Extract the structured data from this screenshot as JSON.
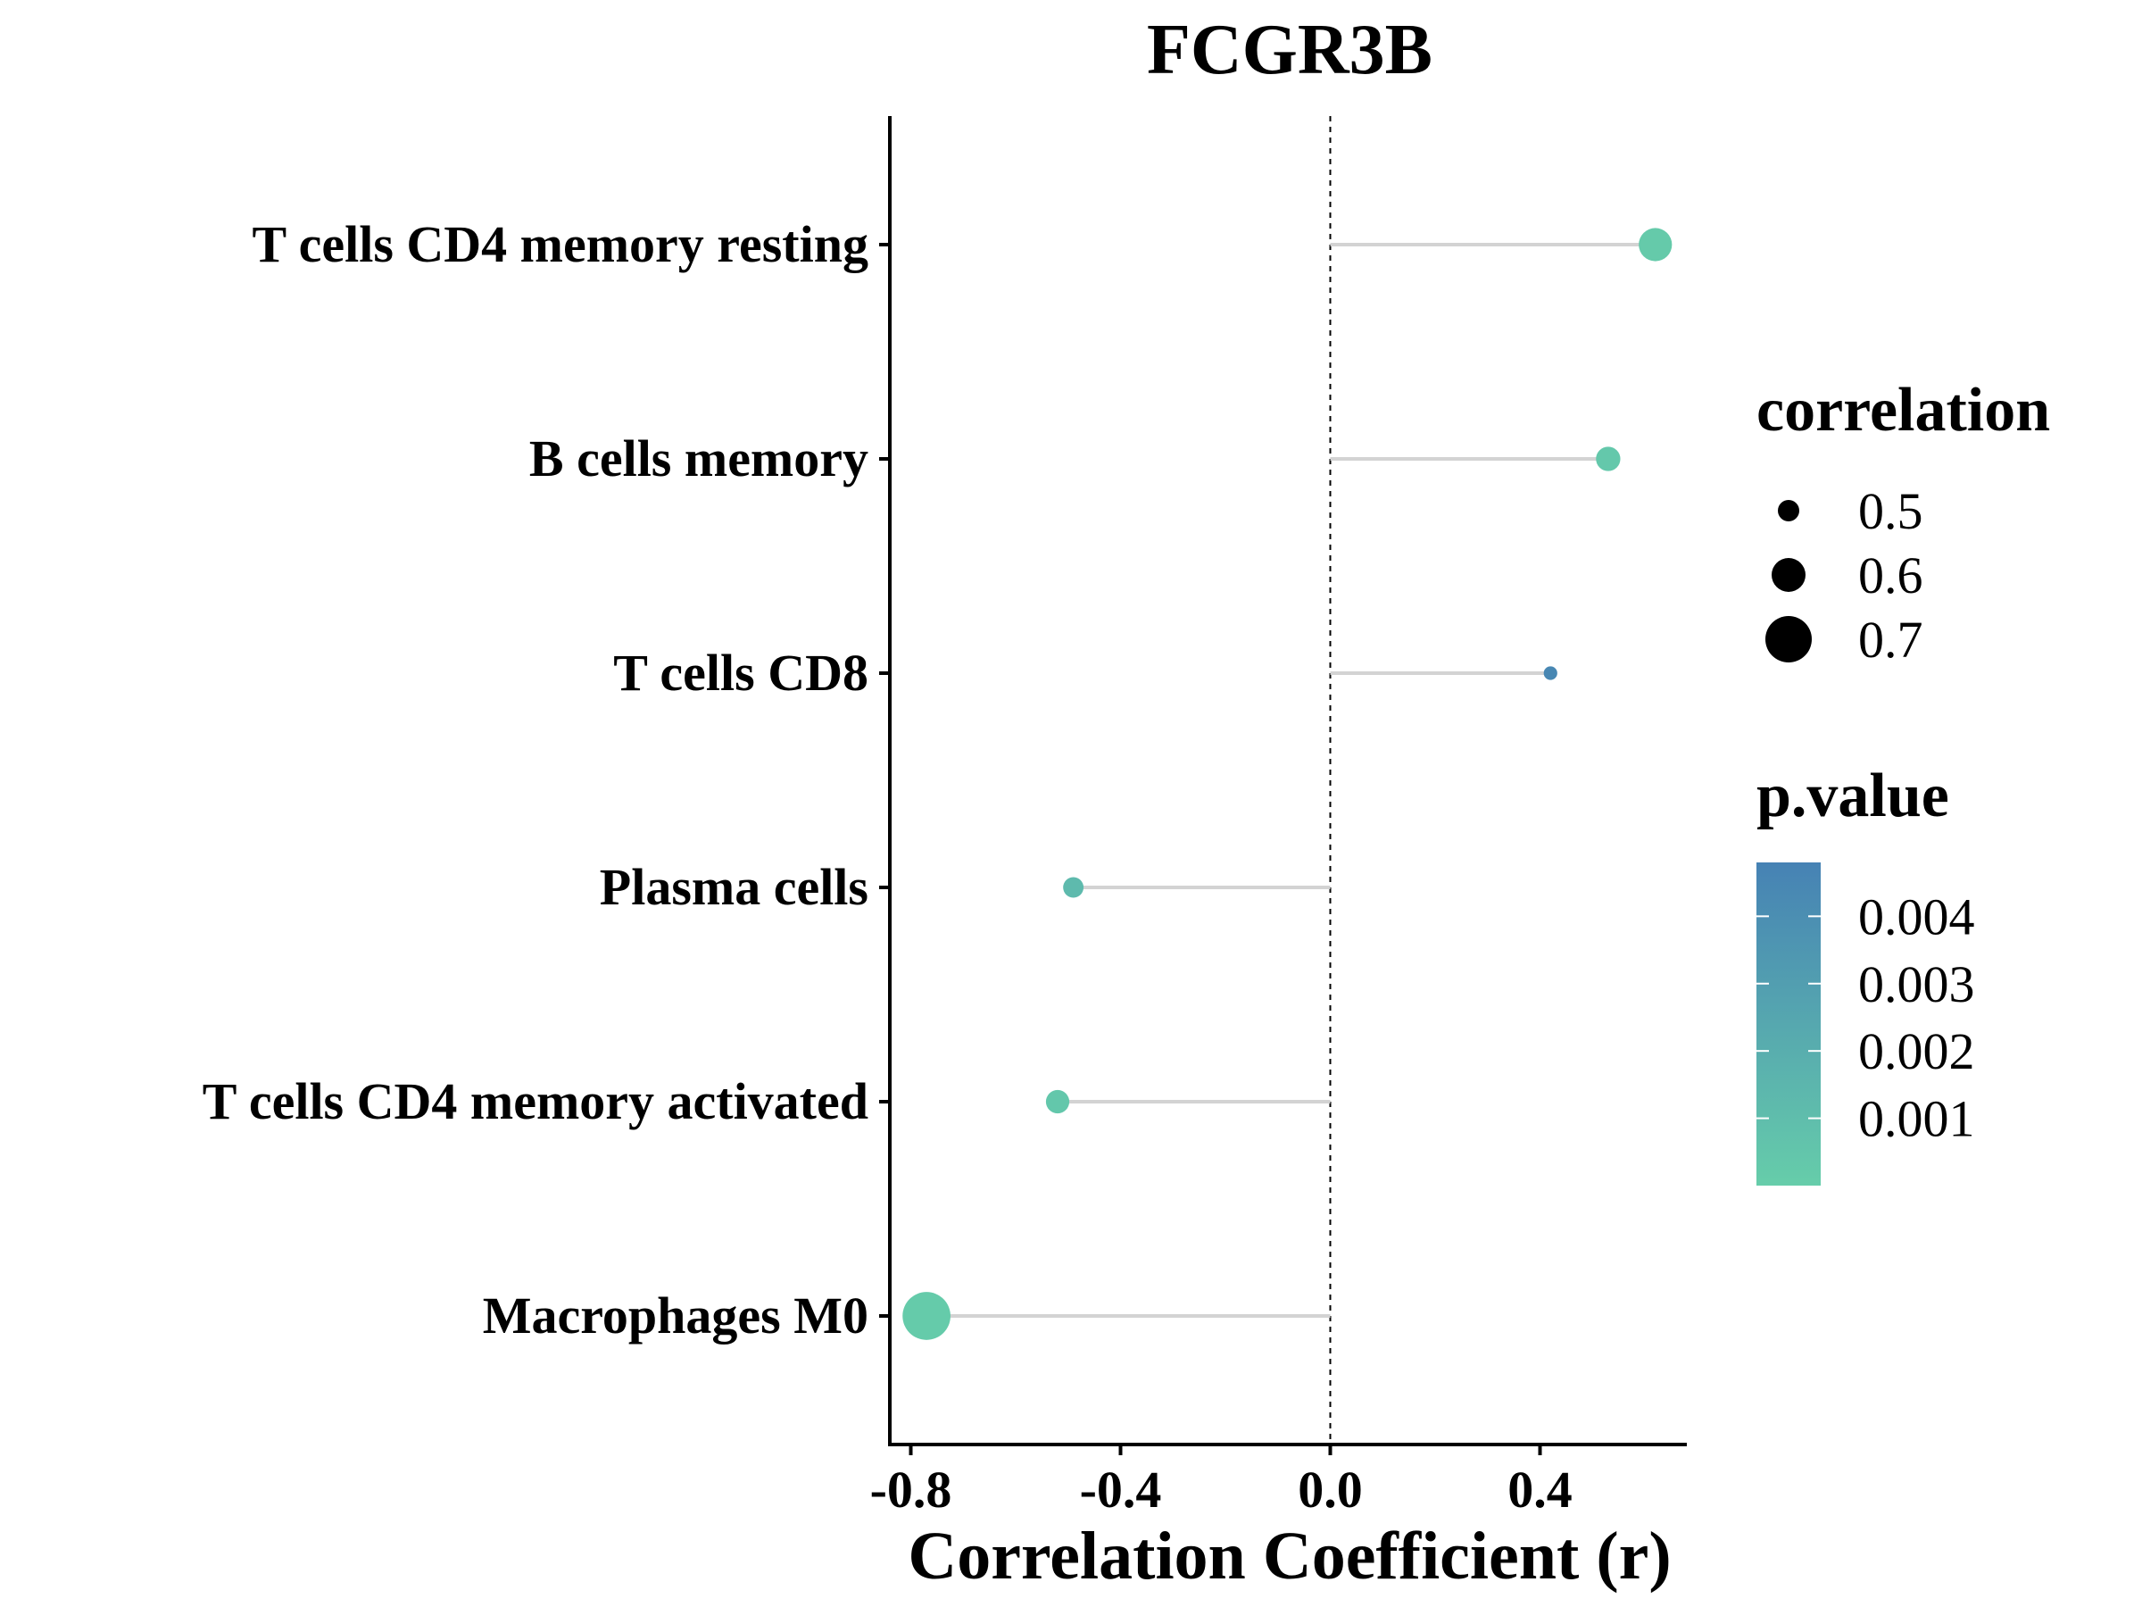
{
  "chart_data": {
    "type": "scatter",
    "subtype": "lollipop",
    "title": "FCGR3B",
    "xlabel": "Correlation Coefficient (r)",
    "ylabel": "",
    "xlim": [
      -0.84,
      0.68
    ],
    "xticks": [
      -0.8,
      -0.4,
      0.0,
      0.4
    ],
    "xtick_labels": [
      "-0.8",
      "-0.4",
      "0.0",
      "0.4"
    ],
    "reference_line": {
      "x": 0,
      "style": "dashed"
    },
    "categories": [
      "T cells CD4 memory resting",
      "B cells memory",
      "T cells CD8",
      "Plasma cells",
      "T cells CD4 memory activated",
      "Macrophages M0"
    ],
    "points": [
      {
        "category": "T cells CD4 memory resting",
        "r": 0.62,
        "correlation": 0.62,
        "p_value": 0.0002
      },
      {
        "category": "B cells memory",
        "r": 0.53,
        "correlation": 0.53,
        "p_value": 0.0003
      },
      {
        "category": "T cells CD8",
        "r": 0.42,
        "correlation": 0.42,
        "p_value": 0.0045
      },
      {
        "category": "Plasma cells",
        "r": -0.49,
        "correlation": 0.49,
        "p_value": 0.0012
      },
      {
        "category": "T cells CD4 memory activated",
        "r": -0.52,
        "correlation": 0.52,
        "p_value": 0.0004
      },
      {
        "category": "Macrophages M0",
        "r": -0.77,
        "correlation": 0.77,
        "p_value": 0.0001
      }
    ],
    "grid": false,
    "legend": {
      "placement": "right",
      "size": {
        "title": "correlation",
        "values": [
          0.5,
          0.6,
          0.7
        ],
        "labels": [
          "0.5",
          "0.6",
          "0.7"
        ]
      },
      "color": {
        "title": "p.value",
        "range": [
          0.0,
          0.0048
        ],
        "ticks": [
          0.004,
          0.003,
          0.002,
          0.001
        ],
        "labels": [
          "0.004",
          "0.003",
          "0.002",
          "0.001"
        ],
        "low_color": "#66CDAA",
        "high_color": "#4682B4"
      }
    },
    "colors": {
      "stem": "#d3d3d3",
      "axis": "#000000",
      "reference_line": "#000000"
    }
  }
}
